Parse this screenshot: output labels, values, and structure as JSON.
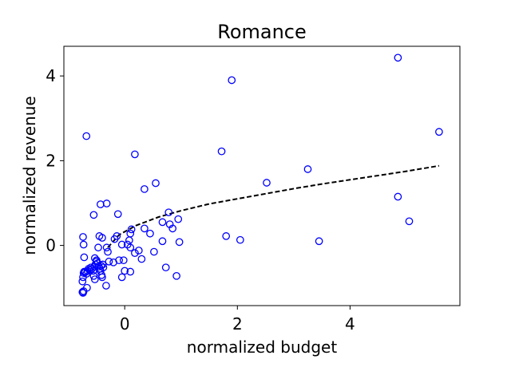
{
  "chart_data": {
    "type": "scatter",
    "title": "Romance",
    "xlabel": "normalized budget",
    "ylabel": "normalized revenue",
    "xlim": [
      -1.08,
      5.95
    ],
    "ylim": [
      -1.42,
      4.7
    ],
    "xticks": [
      0,
      2,
      4
    ],
    "yticks": [
      0,
      2,
      4
    ],
    "grid": false,
    "colors": {
      "points": "#0000ff",
      "trend": "#000000"
    },
    "series": [
      {
        "marker": "open-circle",
        "points": [
          [
            -0.75,
            -1.1
          ],
          [
            -0.74,
            -1.12
          ],
          [
            -0.73,
            -1.08
          ],
          [
            -0.75,
            -0.85
          ],
          [
            -0.74,
            -0.75
          ],
          [
            -0.73,
            -0.65
          ],
          [
            -0.72,
            -0.62
          ],
          [
            -0.7,
            -0.63
          ],
          [
            -0.68,
            -0.67
          ],
          [
            -0.66,
            -0.6
          ],
          [
            -0.64,
            -0.55
          ],
          [
            -0.62,
            -0.58
          ],
          [
            -0.6,
            -0.52
          ],
          [
            -0.58,
            -0.55
          ],
          [
            -0.56,
            -0.6
          ],
          [
            -0.54,
            -0.5
          ],
          [
            -0.52,
            -0.45
          ],
          [
            -0.5,
            -0.38
          ],
          [
            -0.48,
            -0.42
          ],
          [
            -0.46,
            -0.5
          ],
          [
            -0.44,
            -0.55
          ],
          [
            -0.43,
            -0.6
          ],
          [
            -0.42,
            -0.48
          ],
          [
            -0.41,
            -0.7
          ],
          [
            -0.4,
            -0.75
          ],
          [
            -0.39,
            -0.45
          ],
          [
            -0.38,
            -0.52
          ],
          [
            -0.55,
            -0.72
          ],
          [
            -0.53,
            -0.8
          ],
          [
            -0.67,
            -1.0
          ],
          [
            -0.72,
            -0.28
          ],
          [
            -0.73,
            0.02
          ],
          [
            -0.74,
            0.2
          ],
          [
            -0.53,
            -0.3
          ],
          [
            -0.5,
            -0.35
          ],
          [
            -0.47,
            -0.05
          ],
          [
            -0.45,
            0.22
          ],
          [
            -0.4,
            0.18
          ],
          [
            -0.32,
            -0.05
          ],
          [
            -0.3,
            -0.15
          ],
          [
            -0.28,
            -0.38
          ],
          [
            -0.33,
            -0.95
          ],
          [
            -0.2,
            -0.4
          ],
          [
            -0.18,
            0.15
          ],
          [
            -0.14,
            0.22
          ],
          [
            -0.1,
            -0.35
          ],
          [
            -0.05,
            0.02
          ],
          [
            -0.02,
            -0.35
          ],
          [
            0.0,
            -0.6
          ],
          [
            -0.05,
            -0.75
          ],
          [
            0.05,
            0.02
          ],
          [
            0.08,
            0.12
          ],
          [
            0.1,
            -0.05
          ],
          [
            0.1,
            0.28
          ],
          [
            0.12,
            0.38
          ],
          [
            0.1,
            -0.62
          ],
          [
            0.18,
            -0.18
          ],
          [
            0.25,
            -0.12
          ],
          [
            0.3,
            -0.32
          ],
          [
            0.35,
            0.4
          ],
          [
            0.45,
            0.28
          ],
          [
            0.52,
            -0.15
          ],
          [
            0.67,
            0.55
          ],
          [
            0.67,
            0.1
          ],
          [
            0.73,
            -0.52
          ],
          [
            0.78,
            0.78
          ],
          [
            0.8,
            0.5
          ],
          [
            0.85,
            0.4
          ],
          [
            0.92,
            -0.72
          ],
          [
            0.95,
            0.62
          ],
          [
            0.97,
            0.08
          ],
          [
            0.35,
            1.33
          ],
          [
            0.55,
            1.47
          ],
          [
            0.18,
            2.15
          ],
          [
            -0.68,
            2.58
          ],
          [
            -0.43,
            0.97
          ],
          [
            -0.32,
            0.99
          ],
          [
            -0.55,
            0.72
          ],
          [
            -0.12,
            0.74
          ],
          [
            1.72,
            2.22
          ],
          [
            1.8,
            0.22
          ],
          [
            1.9,
            3.9
          ],
          [
            2.05,
            0.13
          ],
          [
            2.52,
            1.48
          ],
          [
            3.25,
            1.8
          ],
          [
            3.45,
            0.1
          ],
          [
            4.85,
            4.43
          ],
          [
            4.85,
            1.15
          ],
          [
            5.05,
            0.57
          ],
          [
            5.58,
            2.68
          ]
        ]
      }
    ],
    "trend_line": {
      "style": "dashed",
      "x": [
        -0.3,
        -0.1,
        0.2,
        0.6,
        1.0,
        1.5,
        2.0,
        2.5,
        3.0,
        3.5,
        4.0,
        4.5,
        5.0,
        5.58
      ],
      "y": [
        -0.05,
        0.25,
        0.47,
        0.67,
        0.82,
        0.98,
        1.1,
        1.22,
        1.34,
        1.45,
        1.55,
        1.65,
        1.75,
        1.88
      ]
    }
  }
}
